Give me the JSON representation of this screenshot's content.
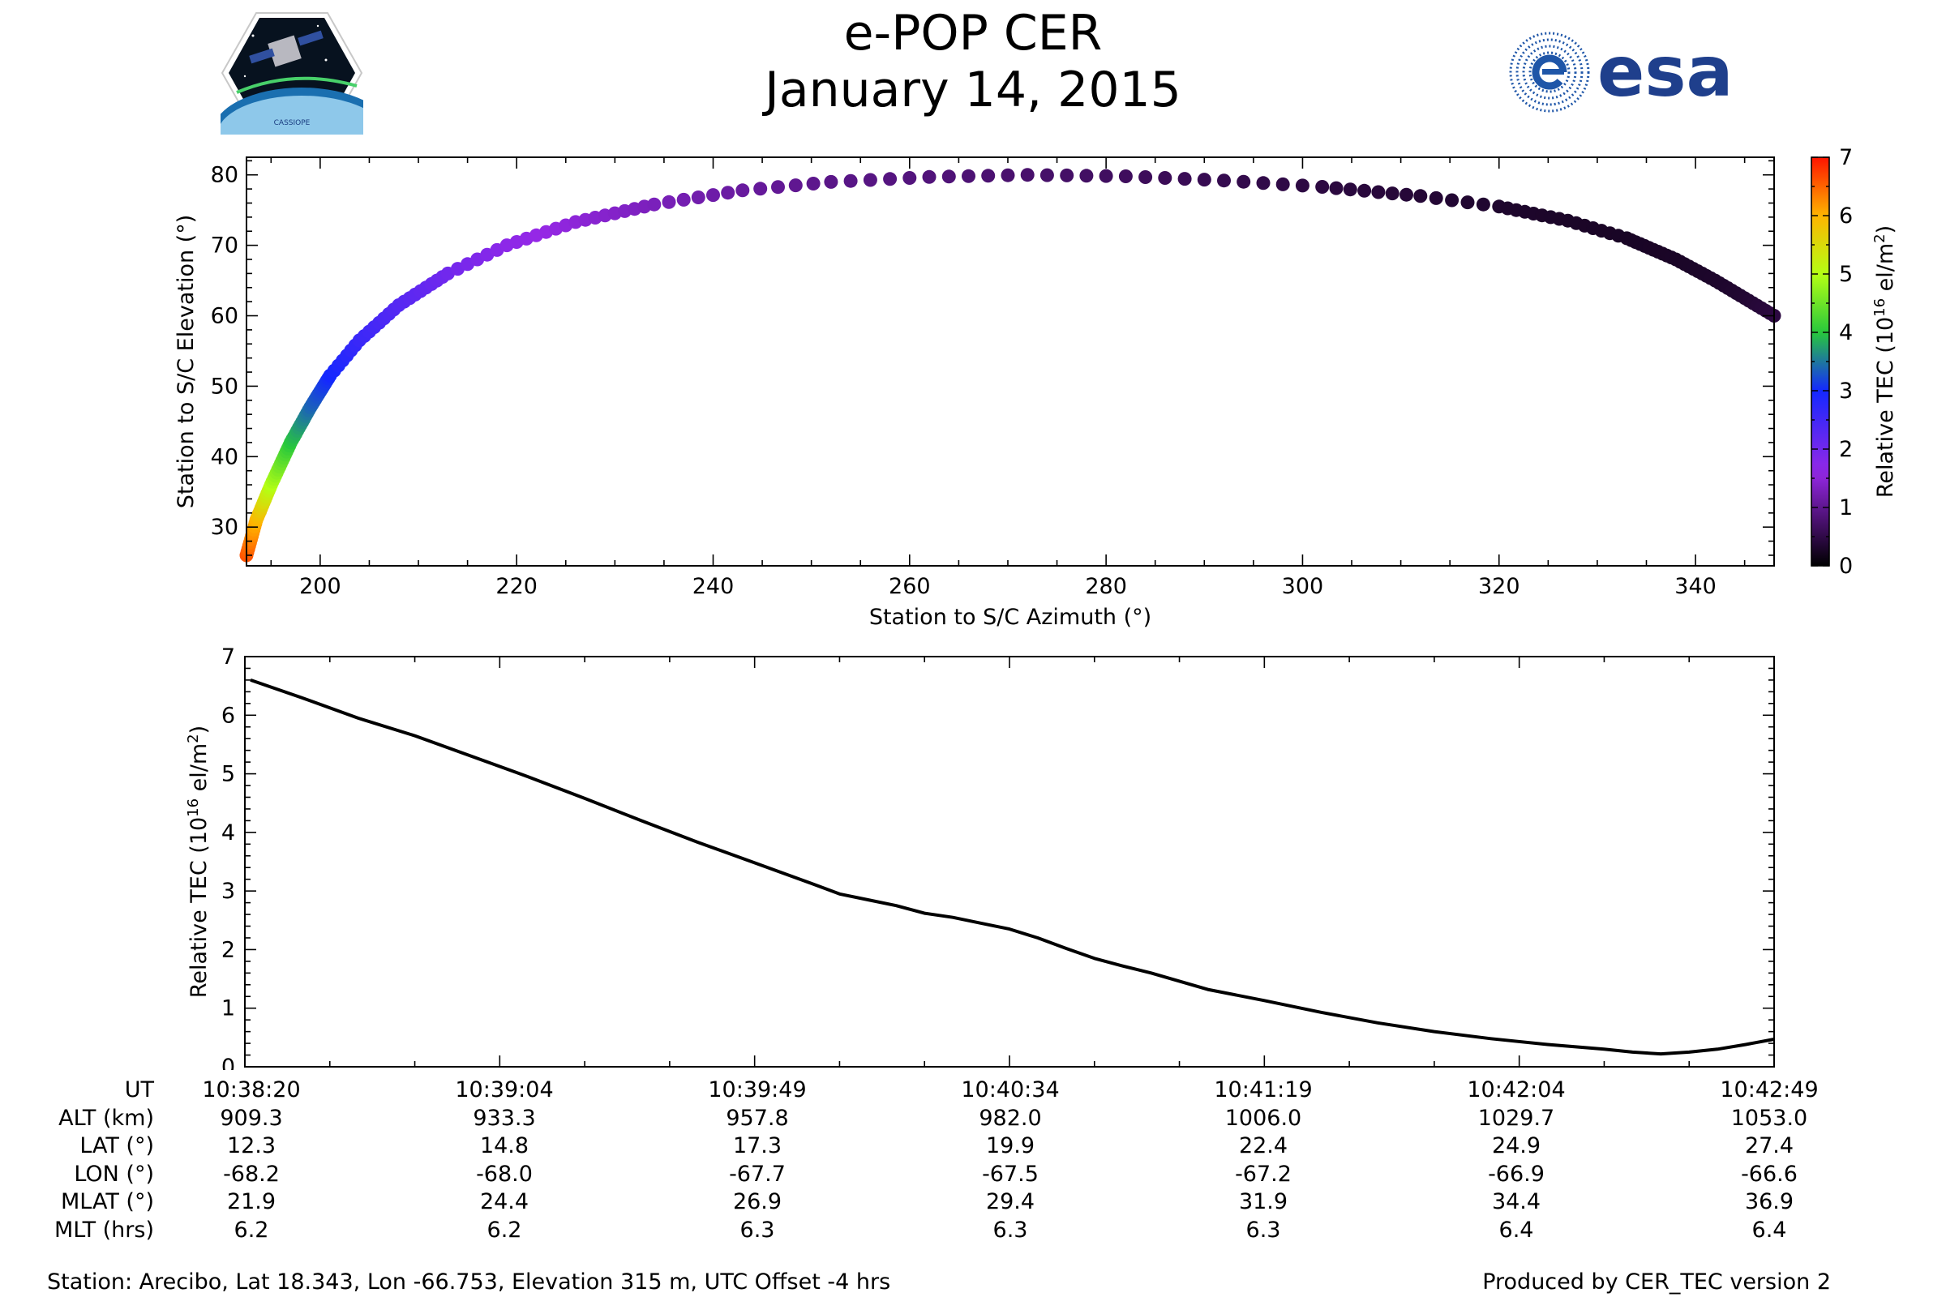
{
  "header": {
    "title_line1": "e-POP CER",
    "title_line2": "January 14, 2015",
    "logo_left_text": "CASSIOPE",
    "logo_right_text": "esa"
  },
  "chart_data": [
    {
      "type": "scatter",
      "xlabel": "Station to S/C Azimuth (°)",
      "ylabel": "Station to S/C Elevation (°)",
      "xlim": [
        192.5,
        348
      ],
      "ylim": [
        24.5,
        82.5
      ],
      "xticks": [
        200,
        220,
        240,
        260,
        280,
        300,
        320,
        340
      ],
      "yticks": [
        30,
        40,
        50,
        60,
        70,
        80
      ],
      "colorbar": {
        "label": "Relative TEC (10",
        "label_sup": "16",
        "label_unit": " el/m",
        "label_sup2": "2",
        "label_end": ")",
        "range": [
          0,
          7
        ],
        "ticks": [
          0,
          1,
          2,
          3,
          4,
          5,
          6,
          7
        ],
        "colormap": "gnuplot-rainbow"
      },
      "track_points": [
        {
          "az": 192.5,
          "el": 26.0,
          "tec": 6.6
        },
        {
          "az": 193.5,
          "el": 31.0,
          "tec": 6.0
        },
        {
          "az": 195.0,
          "el": 36.0,
          "tec": 5.0
        },
        {
          "az": 197.0,
          "el": 42.0,
          "tec": 4.0
        },
        {
          "az": 199.0,
          "el": 47.0,
          "tec": 3.4
        },
        {
          "az": 201.0,
          "el": 51.5,
          "tec": 3.0
        },
        {
          "az": 204.0,
          "el": 56.5,
          "tec": 2.6
        },
        {
          "az": 208.0,
          "el": 61.5,
          "tec": 2.3
        },
        {
          "az": 213.0,
          "el": 66.0,
          "tec": 2.0
        },
        {
          "az": 219.0,
          "el": 70.0,
          "tec": 1.7
        },
        {
          "az": 226.0,
          "el": 73.3,
          "tec": 1.5
        },
        {
          "az": 234.0,
          "el": 75.8,
          "tec": 1.3
        },
        {
          "az": 243.0,
          "el": 77.8,
          "tec": 1.1
        },
        {
          "az": 252.0,
          "el": 79.0,
          "tec": 0.95
        },
        {
          "az": 262.0,
          "el": 79.7,
          "tec": 0.85
        },
        {
          "az": 272.0,
          "el": 80.0,
          "tec": 0.75
        },
        {
          "az": 282.0,
          "el": 79.8,
          "tec": 0.65
        },
        {
          "az": 292.0,
          "el": 79.2,
          "tec": 0.55
        },
        {
          "az": 302.0,
          "el": 78.3,
          "tec": 0.45
        },
        {
          "az": 312.0,
          "el": 77.0,
          "tec": 0.38
        },
        {
          "az": 320.0,
          "el": 75.5,
          "tec": 0.32
        },
        {
          "az": 327.0,
          "el": 73.5,
          "tec": 0.28
        },
        {
          "az": 333.0,
          "el": 71.0,
          "tec": 0.26
        },
        {
          "az": 338.0,
          "el": 68.0,
          "tec": 0.27
        },
        {
          "az": 342.0,
          "el": 65.0,
          "tec": 0.3
        },
        {
          "az": 345.0,
          "el": 62.5,
          "tec": 0.35
        },
        {
          "az": 348.0,
          "el": 60.0,
          "tec": 0.45
        }
      ]
    },
    {
      "type": "line",
      "ylabel": "Relative TEC (10",
      "ylabel_sup": "16",
      "ylabel_unit": " el/m",
      "ylabel_sup2": "2",
      "ylabel_end": ")",
      "xlim": [
        0,
        270
      ],
      "ylim": [
        0,
        7
      ],
      "yticks": [
        0,
        1,
        2,
        3,
        4,
        5,
        6,
        7
      ],
      "x": [
        1,
        10,
        20,
        30,
        40,
        50,
        60,
        70,
        80,
        90,
        100,
        105,
        110,
        115,
        120,
        125,
        130,
        135,
        140,
        145,
        150,
        155,
        160,
        170,
        180,
        190,
        200,
        210,
        220,
        230,
        240,
        245,
        250,
        255,
        260,
        265,
        270
      ],
      "y": [
        6.6,
        6.3,
        5.95,
        5.65,
        5.3,
        4.95,
        4.58,
        4.2,
        3.83,
        3.48,
        3.13,
        2.95,
        2.85,
        2.75,
        2.62,
        2.55,
        2.45,
        2.35,
        2.2,
        2.02,
        1.85,
        1.72,
        1.6,
        1.32,
        1.13,
        0.93,
        0.75,
        0.6,
        0.48,
        0.38,
        0.3,
        0.25,
        0.22,
        0.25,
        0.3,
        0.38,
        0.47
      ]
    }
  ],
  "ephemeris": {
    "labels": [
      "UT",
      "ALT (km)",
      "LAT (°)",
      "LON (°)",
      "MLAT (°)",
      "MLT (hrs)"
    ],
    "columns": [
      [
        "10:38:20",
        "909.3",
        "12.3",
        "-68.2",
        "21.9",
        "6.2"
      ],
      [
        "10:39:04",
        "933.3",
        "14.8",
        "-68.0",
        "24.4",
        "6.2"
      ],
      [
        "10:39:49",
        "957.8",
        "17.3",
        "-67.7",
        "26.9",
        "6.3"
      ],
      [
        "10:40:34",
        "982.0",
        "19.9",
        "-67.5",
        "29.4",
        "6.3"
      ],
      [
        "10:41:19",
        "1006.0",
        "22.4",
        "-67.2",
        "31.9",
        "6.3"
      ],
      [
        "10:42:04",
        "1029.7",
        "24.9",
        "-66.9",
        "34.4",
        "6.4"
      ],
      [
        "10:42:49",
        "1053.0",
        "27.4",
        "-66.6",
        "36.9",
        "6.4"
      ]
    ]
  },
  "footer": {
    "station": "Station: Arecibo, Lat 18.343, Lon -66.753, Elevation 315 m, UTC Offset -4 hrs",
    "produced": "Produced by CER_TEC version 2"
  },
  "colors": {
    "line": "#000000",
    "axis": "#000000"
  }
}
